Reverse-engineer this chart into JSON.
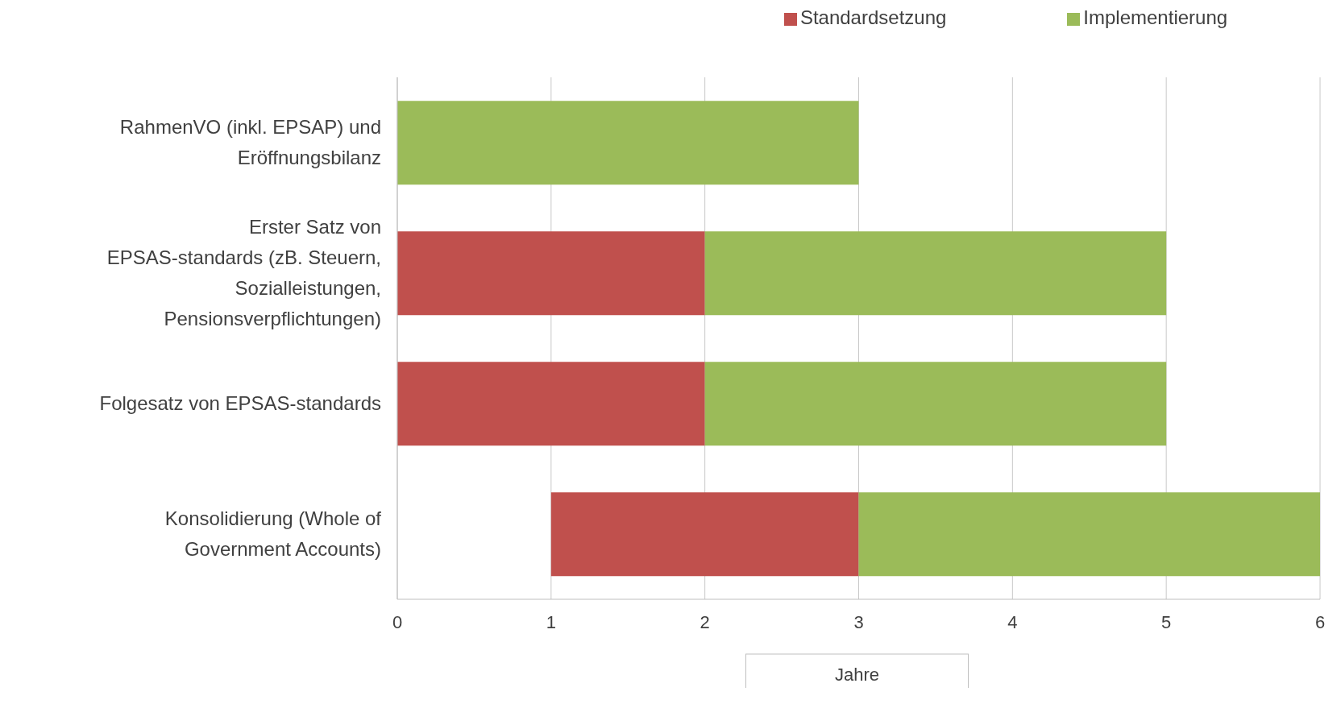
{
  "chart_data": {
    "type": "bar",
    "orientation": "horizontal",
    "categories": [
      "RahmenVO (inkl. EPSAP) und Eröffnungsbilanz",
      "Erster Satz von EPSAS-standards (zB. Steuern, Sozialleistungen, Pensionsverpflichtungen)",
      "Folgesatz von EPSAS-standards",
      "Konsolidierung (Whole of Government Accounts)"
    ],
    "series": [
      {
        "name": "Standardsetzung",
        "color": "#c0504d",
        "base": [
          null,
          0,
          0,
          1
        ],
        "values": [
          null,
          2,
          2,
          2
        ]
      },
      {
        "name": "Implementierung",
        "color": "#9bbb59",
        "base": [
          0,
          2,
          2,
          3
        ],
        "values": [
          3,
          3,
          3,
          3
        ]
      }
    ],
    "xlabel": "Jahre",
    "xlim": [
      0,
      6
    ],
    "xticks": [
      0,
      1,
      2,
      3,
      4,
      5,
      6
    ],
    "grid": "x",
    "legend": "top"
  }
}
